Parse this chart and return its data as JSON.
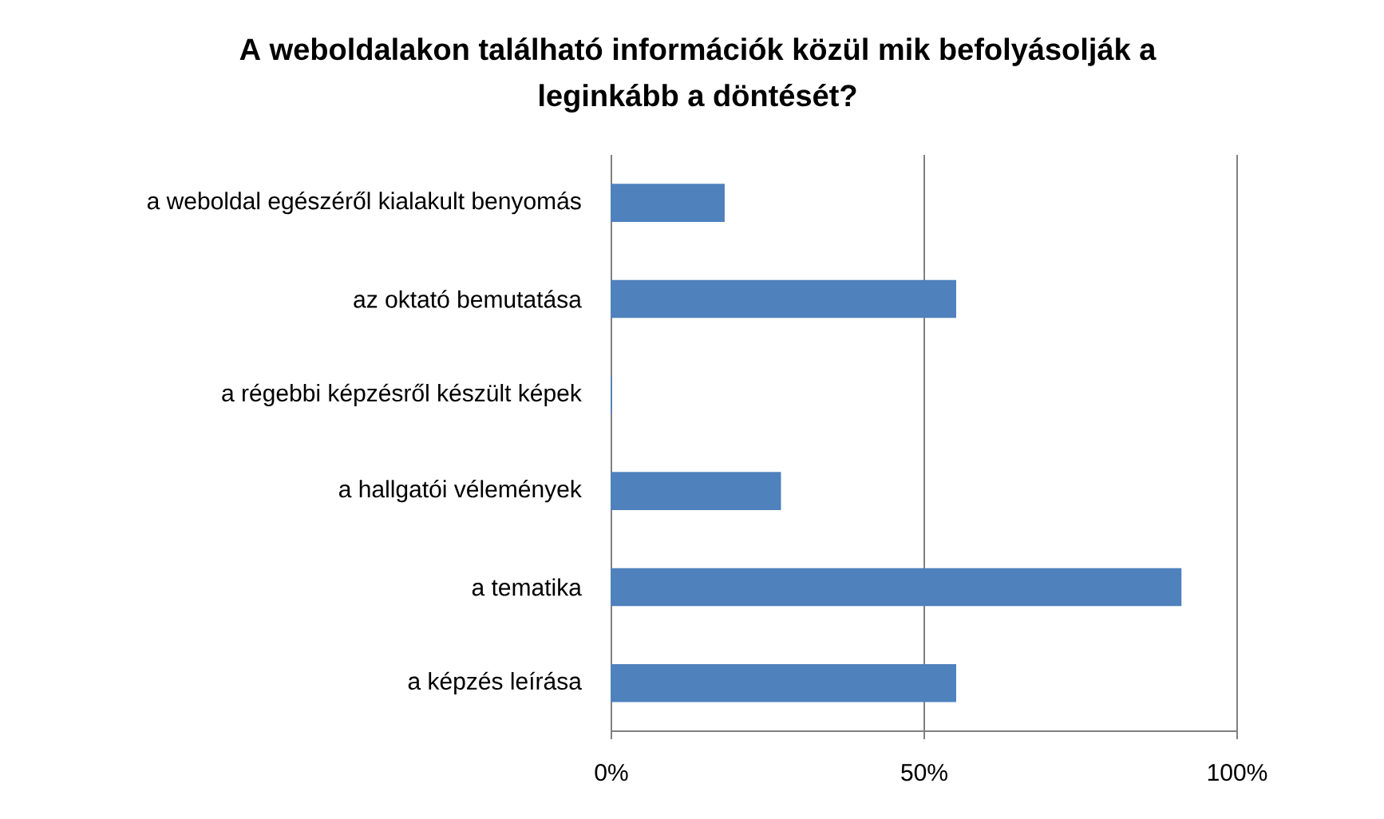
{
  "chart_data": {
    "type": "bar",
    "orientation": "horizontal",
    "title": "A weboldalakon található információk közül mik befolyásolják a leginkább a döntését?",
    "categories": [
      "a weboldal egészéről kialakult benyomás",
      "az oktató bemutatása",
      "a régebbi képzésről készült képek",
      "a hallgatói vélemények",
      "a tematika",
      "a képzés leírása"
    ],
    "values": [
      18,
      55,
      0,
      27,
      91,
      55
    ],
    "color": "#4f81bd",
    "xlim": [
      0,
      100
    ],
    "xticks": [
      {
        "value": 0,
        "label": "0%"
      },
      {
        "value": 50,
        "label": "50%"
      },
      {
        "value": 100,
        "label": "100%"
      }
    ],
    "grid": "x"
  }
}
